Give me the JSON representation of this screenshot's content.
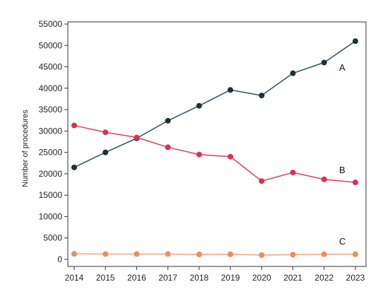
{
  "chart_data": {
    "type": "line",
    "title": "",
    "xlabel": "",
    "ylabel": "Number of procedures",
    "x": [
      "2014",
      "2015",
      "2016",
      "2017",
      "2018",
      "2019",
      "2020",
      "2021",
      "2022",
      "2023"
    ],
    "ylim": [
      0,
      55000
    ],
    "yticks": [
      0,
      5000,
      10000,
      15000,
      20000,
      25000,
      30000,
      35000,
      40000,
      45000,
      50000,
      55000
    ],
    "grid": false,
    "legend": "none",
    "series": [
      {
        "name": "A",
        "color": "#2f5e69",
        "marker_color": "#1f3038",
        "values": [
          21500,
          25000,
          28300,
          32400,
          35900,
          39600,
          38300,
          43500,
          46000,
          51000
        ]
      },
      {
        "name": "B",
        "color": "#e24a63",
        "marker_color": "#d8334f",
        "values": [
          31300,
          29700,
          28500,
          26200,
          24500,
          24000,
          18300,
          20300,
          18700,
          18000
        ]
      },
      {
        "name": "C",
        "color": "#f3a983",
        "marker_color": "#f08c5c",
        "values": [
          1300,
          1250,
          1250,
          1250,
          1150,
          1200,
          1000,
          1100,
          1200,
          1200
        ]
      }
    ]
  }
}
